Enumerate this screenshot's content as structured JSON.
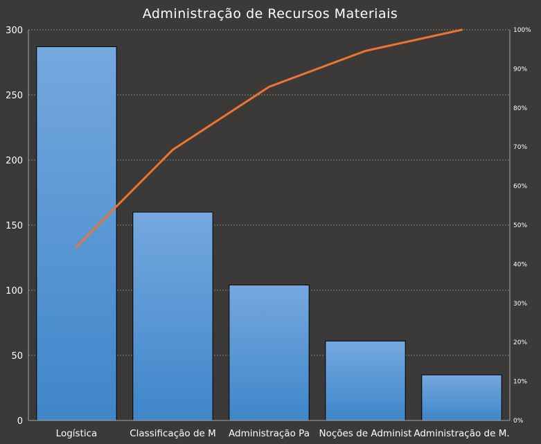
{
  "chart_data": {
    "type": "bar",
    "title": "Administração de Recursos Materiais",
    "categories": [
      "Logística",
      "Classificação de M",
      "Administração Pa",
      "Noções de Administ",
      "Administração de M."
    ],
    "series": [
      {
        "type": "bar",
        "values": [
          287,
          160,
          104,
          61,
          35
        ]
      },
      {
        "type": "line",
        "axis": "right",
        "values": [
          44.5,
          69.3,
          85.4,
          94.6,
          100.0
        ]
      }
    ],
    "ylim": [
      0,
      300
    ],
    "yticks": [
      "0",
      "50",
      "100",
      "150",
      "200",
      "250",
      "300"
    ],
    "y2lim": [
      0,
      100
    ],
    "y2ticks": [
      "0%",
      "10%",
      "20%",
      "30%",
      "40%",
      "50%",
      "60%",
      "70%",
      "80%",
      "90%",
      "100%"
    ],
    "grid": true,
    "legend": "none",
    "colors": {
      "bar_top": "#75a8df",
      "bar_bottom": "#3f86c9",
      "bar_stroke": "#000000",
      "line": "#ee7430",
      "background": "#3b3a38"
    }
  }
}
